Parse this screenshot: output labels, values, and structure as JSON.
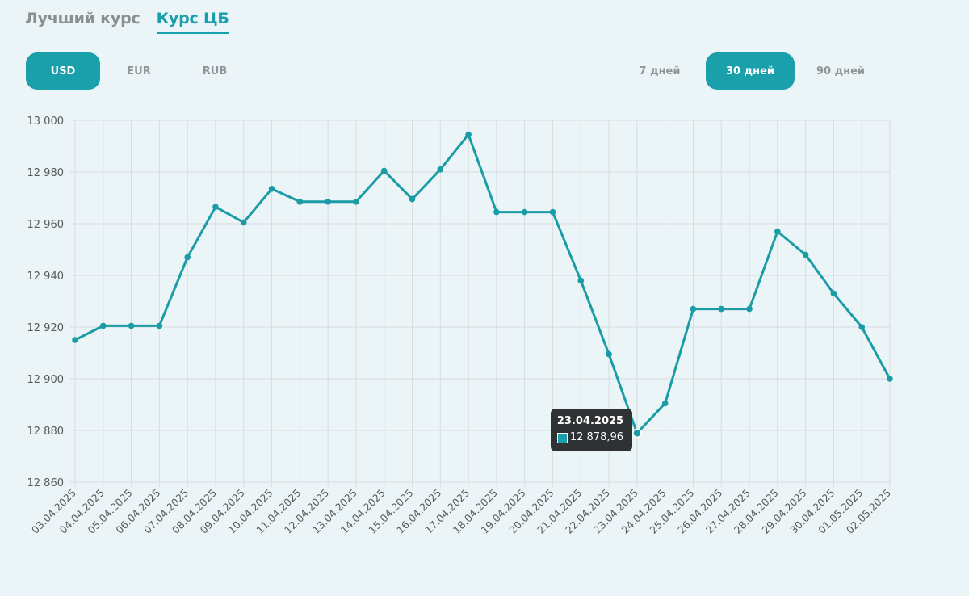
{
  "tabs": [
    {
      "label": "Лучший курс",
      "active": false
    },
    {
      "label": "Курс ЦБ",
      "active": true
    }
  ],
  "currencies": [
    {
      "label": "USD",
      "active": true
    },
    {
      "label": "EUR",
      "active": false
    },
    {
      "label": "RUB",
      "active": false
    }
  ],
  "periods": [
    {
      "label": "7 дней",
      "active": false
    },
    {
      "label": "30 дней",
      "active": true
    },
    {
      "label": "90 дней",
      "active": false
    }
  ],
  "colors": {
    "accent": "#1aa0ab",
    "line": "#1a9ca7",
    "grid": "#d5dde0"
  },
  "tooltip": {
    "date": "23.04.2025",
    "value": "12 878,96"
  },
  "chart_data": {
    "type": "line",
    "x": [
      "03.04.2025",
      "04.04.2025",
      "05.04.2025",
      "06.04.2025",
      "07.04.2025",
      "08.04.2025",
      "09.04.2025",
      "10.04.2025",
      "11.04.2025",
      "12.04.2025",
      "13.04.2025",
      "14.04.2025",
      "15.04.2025",
      "16.04.2025",
      "17.04.2025",
      "18.04.2025",
      "19.04.2025",
      "20.04.2025",
      "21.04.2025",
      "22.04.2025",
      "23.04.2025",
      "24.04.2025",
      "25.04.2025",
      "26.04.2025",
      "27.04.2025",
      "28.04.2025",
      "29.04.2025",
      "30.04.2025",
      "01.05.2025",
      "02.05.2025"
    ],
    "series": [
      {
        "values": [
          12915,
          12920.5,
          12920.5,
          12920.5,
          12947,
          12966.5,
          12960.5,
          12973.5,
          12968.5,
          12968.5,
          12968.5,
          12980.5,
          12969.5,
          12981,
          12994.5,
          12964.5,
          12964.5,
          12964.5,
          12938,
          12909.5,
          12878.96,
          12890.5,
          12927,
          12927,
          12927,
          12957,
          12948,
          12933,
          12920,
          12900
        ]
      }
    ],
    "yticks": [
      "13 000",
      "12 980",
      "12 960",
      "12 940",
      "12 920",
      "12 900",
      "12 880",
      "12 860"
    ],
    "ylim": [
      12860,
      13000
    ],
    "grid": true,
    "highlight_index": 20
  }
}
